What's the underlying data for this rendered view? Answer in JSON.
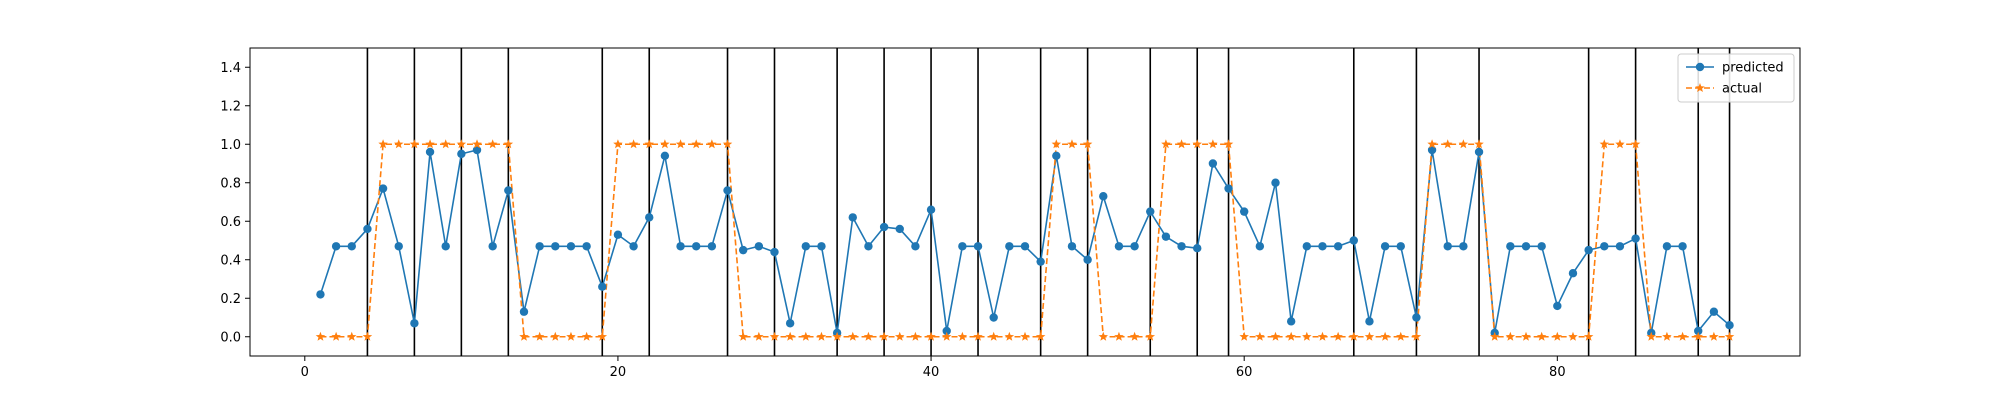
{
  "chart_data": {
    "type": "line",
    "title": "",
    "xlabel": "",
    "ylabel": "",
    "xlim": [
      -3.5,
      95.5
    ],
    "ylim": [
      -0.1,
      1.5
    ],
    "xticks": [
      0,
      20,
      40,
      60,
      80
    ],
    "yticks": [
      0.0,
      0.2,
      0.4,
      0.6,
      0.8,
      1.0,
      1.2,
      1.4
    ],
    "xtick_labels": [
      "0",
      "20",
      "40",
      "60",
      "80"
    ],
    "ytick_labels": [
      "0.0",
      "0.2",
      "0.4",
      "0.6",
      "0.8",
      "1.0",
      "1.2",
      "1.4"
    ],
    "grid": false,
    "legend_position": "top-right",
    "x": [
      1,
      2,
      3,
      4,
      5,
      6,
      7,
      8,
      9,
      10,
      11,
      12,
      13,
      14,
      15,
      16,
      17,
      18,
      19,
      20,
      21,
      22,
      23,
      24,
      25,
      26,
      27,
      28,
      29,
      30,
      31,
      32,
      33,
      34,
      35,
      36,
      37,
      38,
      39,
      40,
      41,
      42,
      43,
      44,
      45,
      46,
      47,
      48,
      49,
      50,
      51,
      52,
      53,
      54,
      55,
      56,
      57,
      58,
      59,
      60,
      61,
      62,
      63,
      64,
      65,
      66,
      67,
      68,
      69,
      70,
      71,
      72,
      73,
      74,
      75,
      76,
      77,
      78,
      79,
      80,
      81,
      82,
      83,
      84,
      85,
      86,
      87,
      88,
      89,
      90,
      91
    ],
    "series": [
      {
        "name": "predicted",
        "color": "#1f77b4",
        "marker": "circle",
        "line_style": "solid",
        "values": [
          0.22,
          0.47,
          0.47,
          0.56,
          0.77,
          0.47,
          0.07,
          0.96,
          0.47,
          0.95,
          0.97,
          0.47,
          0.76,
          0.13,
          0.47,
          0.47,
          0.47,
          0.47,
          0.26,
          0.53,
          0.47,
          0.62,
          0.94,
          0.47,
          0.47,
          0.47,
          0.76,
          0.45,
          0.47,
          0.44,
          0.07,
          0.47,
          0.47,
          0.02,
          0.62,
          0.47,
          0.57,
          0.56,
          0.47,
          0.66,
          0.03,
          0.47,
          0.47,
          0.1,
          0.47,
          0.47,
          0.39,
          0.94,
          0.47,
          0.4,
          0.73,
          0.47,
          0.47,
          0.65,
          0.52,
          0.47,
          0.46,
          0.9,
          0.77,
          0.65,
          0.47,
          0.8,
          0.08,
          0.47,
          0.47,
          0.47,
          0.5,
          0.08,
          0.47,
          0.47,
          0.1,
          0.97,
          0.47,
          0.47,
          0.96,
          0.02,
          0.47,
          0.47,
          0.47,
          0.16,
          0.33,
          0.45,
          0.47,
          0.47,
          0.51,
          0.02,
          0.47,
          0.47,
          0.03,
          0.13,
          0.06
        ]
      },
      {
        "name": "actual",
        "color": "#ff7f0e",
        "marker": "star",
        "line_style": "dashed",
        "values": [
          0,
          0,
          0,
          0,
          1,
          1,
          1,
          1,
          1,
          1,
          1,
          1,
          1,
          0,
          0,
          0,
          0,
          0,
          0,
          1,
          1,
          1,
          1,
          1,
          1,
          1,
          1,
          0,
          0,
          0,
          0,
          0,
          0,
          0,
          0,
          0,
          0,
          0,
          0,
          0,
          0,
          0,
          0,
          0,
          0,
          0,
          0,
          1,
          1,
          1,
          0,
          0,
          0,
          0,
          1,
          1,
          1,
          1,
          1,
          0,
          0,
          0,
          0,
          0,
          0,
          0,
          0,
          0,
          0,
          0,
          0,
          1,
          1,
          1,
          1,
          0,
          0,
          0,
          0,
          0,
          0,
          0,
          1,
          1,
          1,
          0,
          0,
          0,
          0,
          0,
          0
        ]
      }
    ],
    "vertical_lines": [
      4,
      7,
      10,
      13,
      19,
      22,
      27,
      30,
      34,
      37,
      40,
      43,
      47,
      50,
      54,
      57,
      59,
      67,
      71,
      75,
      82,
      85,
      89,
      91
    ],
    "vertical_line_color": "#000000"
  }
}
